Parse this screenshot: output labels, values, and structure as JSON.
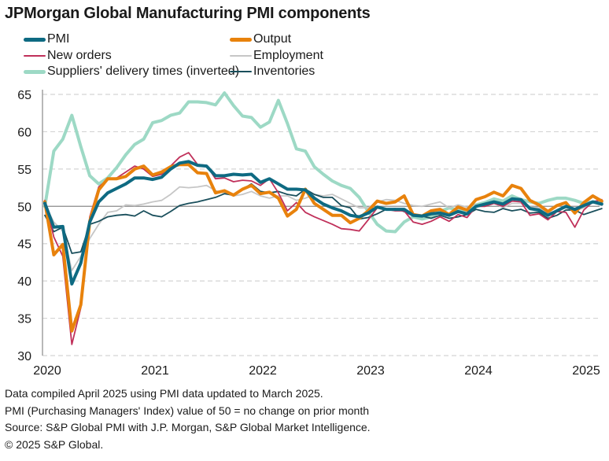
{
  "chart_data": {
    "type": "line",
    "title": "JPMorgan Global Manufacturing PMI components",
    "xlabel": "",
    "ylabel": "",
    "ylim": [
      30,
      65
    ],
    "yticks": [
      30,
      35,
      40,
      45,
      50,
      55,
      60,
      65
    ],
    "grid": true,
    "reference_line": 50,
    "x_start": "2020-01",
    "x_end": "2025-03",
    "xtick_labels": [
      "2020",
      "2021",
      "2022",
      "2023",
      "2024",
      "2025"
    ],
    "legend_position": "top",
    "series": [
      {
        "name": "PMI",
        "color": "#0e6a82",
        "weight": "thick",
        "values": [
          50.4,
          47.2,
          47.3,
          39.6,
          42.4,
          47.9,
          50.6,
          51.8,
          52.4,
          53.0,
          53.8,
          53.8,
          53.6,
          53.9,
          55.0,
          55.8,
          56.0,
          55.5,
          55.4,
          54.1,
          54.1,
          54.3,
          54.2,
          54.3,
          53.2,
          53.7,
          53.0,
          52.3,
          52.3,
          52.2,
          51.1,
          50.3,
          49.8,
          49.4,
          48.8,
          48.6,
          49.1,
          49.9,
          49.6,
          49.6,
          49.6,
          48.8,
          48.7,
          49.0,
          49.1,
          48.8,
          49.3,
          49.0,
          50.0,
          50.3,
          50.6,
          50.3,
          51.0,
          50.9,
          49.7,
          49.5,
          48.8,
          49.4,
          50.0,
          49.6,
          50.1,
          50.6,
          50.3
        ]
      },
      {
        "name": "Output",
        "color": "#e8820c",
        "weight": "thick",
        "values": [
          50.6,
          43.5,
          44.9,
          33.3,
          36.8,
          48.0,
          52.2,
          53.7,
          53.7,
          54.0,
          55.0,
          55.4,
          54.2,
          54.6,
          55.3,
          55.6,
          55.6,
          54.5,
          54.4,
          51.8,
          52.1,
          51.5,
          52.3,
          52.8,
          51.7,
          51.9,
          51.1,
          48.7,
          49.6,
          52.3,
          50.4,
          49.6,
          48.8,
          48.8,
          47.8,
          48.4,
          49.4,
          50.7,
          50.4,
          50.6,
          51.4,
          48.9,
          48.7,
          49.4,
          49.6,
          48.9,
          49.9,
          49.5,
          50.9,
          51.3,
          51.9,
          51.4,
          52.8,
          52.4,
          50.8,
          50.2,
          49.3,
          50.1,
          50.5,
          49.1,
          50.5,
          51.4,
          50.7
        ]
      },
      {
        "name": "New orders",
        "color": "#c0305a",
        "weight": "thin",
        "values": [
          50.8,
          45.9,
          43.3,
          31.5,
          36.4,
          48.6,
          52.6,
          53.6,
          53.8,
          54.6,
          55.4,
          55.0,
          54.0,
          54.3,
          55.4,
          56.6,
          57.2,
          55.6,
          55.5,
          53.7,
          53.8,
          53.3,
          53.5,
          53.4,
          52.8,
          53.7,
          51.8,
          49.4,
          50.5,
          49.2,
          48.6,
          48.1,
          47.6,
          47.0,
          46.9,
          46.7,
          48.2,
          49.8,
          49.6,
          49.4,
          49.4,
          47.9,
          47.6,
          48.0,
          48.6,
          48.0,
          48.9,
          48.5,
          50.0,
          50.0,
          50.4,
          50.0,
          50.7,
          50.6,
          48.8,
          49.0,
          48.2,
          49.3,
          49.2,
          47.2,
          49.5,
          50.6,
          50.9
        ]
      },
      {
        "name": "Employment",
        "color": "#c6c6c6",
        "weight": "thin",
        "values": [
          50.2,
          47.9,
          46.7,
          41.4,
          43.3,
          45.7,
          47.6,
          49.2,
          49.4,
          50.2,
          50.1,
          50.3,
          50.6,
          50.8,
          51.6,
          52.6,
          52.5,
          52.6,
          52.8,
          52.1,
          51.8,
          51.4,
          51.6,
          52.0,
          51.4,
          51.1,
          51.4,
          51.4,
          50.8,
          51.1,
          51.6,
          51.4,
          51.6,
          51.0,
          50.4,
          49.8,
          49.8,
          50.6,
          50.9,
          50.8,
          50.4,
          50.1,
          50.0,
          50.3,
          50.6,
          49.8,
          50.2,
          49.9,
          50.2,
          50.1,
          50.5,
          49.8,
          50.4,
          50.4,
          49.9,
          49.8,
          49.1,
          49.4,
          49.8,
          49.4,
          49.8,
          50.5,
          50.1
        ]
      },
      {
        "name": "Suppliers' delivery times (inverted)",
        "color": "#9dd9c5",
        "weight": "thick",
        "values": [
          50.0,
          57.4,
          59.0,
          62.2,
          58.0,
          54.1,
          53.0,
          53.8,
          55.2,
          56.9,
          58.3,
          59.0,
          61.2,
          61.5,
          62.2,
          62.5,
          64.0,
          64.0,
          63.9,
          63.6,
          65.2,
          63.5,
          62.1,
          61.9,
          60.6,
          61.3,
          64.2,
          61.1,
          57.7,
          57.4,
          55.3,
          54.3,
          53.4,
          52.8,
          52.4,
          51.2,
          49.3,
          47.6,
          46.7,
          46.6,
          47.9,
          48.6,
          48.3,
          48.6,
          49.3,
          49.8,
          49.5,
          49.5,
          50.2,
          50.5,
          51.0,
          50.7,
          51.4,
          50.9,
          50.6,
          50.4,
          50.8,
          51.1,
          51.1,
          50.8,
          50.4,
          50.6,
          50.6
        ]
      },
      {
        "name": "Inventories",
        "color": "#1a4f5c",
        "weight": "thin",
        "values": [
          48.8,
          46.6,
          47.2,
          43.7,
          43.9,
          47.6,
          48.0,
          48.6,
          48.8,
          48.9,
          48.7,
          49.4,
          48.8,
          48.6,
          49.3,
          50.1,
          50.4,
          50.6,
          50.9,
          51.2,
          51.7,
          51.5,
          52.3,
          53.0,
          52.0,
          51.8,
          52.0,
          51.6,
          51.4,
          52.3,
          51.6,
          51.2,
          51.2,
          50.1,
          49.8,
          48.3,
          48.5,
          49.0,
          49.6,
          49.7,
          49.3,
          48.7,
          48.7,
          48.4,
          48.8,
          48.4,
          48.6,
          48.9,
          49.6,
          49.3,
          49.2,
          49.7,
          49.4,
          49.6,
          49.1,
          49.2,
          48.4,
          48.8,
          49.5,
          49.5,
          48.9,
          49.3,
          49.7
        ]
      }
    ]
  },
  "footer": {
    "line1": "Data compiled April 2025 using PMI data updated to March 2025.",
    "line2": "PMI (Purchasing Managers' Index) value of 50 = no change on prior month",
    "line3": "Source: S&P Global PMI with J.P. Morgan, S&P Global Market Intelligence.",
    "line4": "© 2025 S&P Global."
  }
}
